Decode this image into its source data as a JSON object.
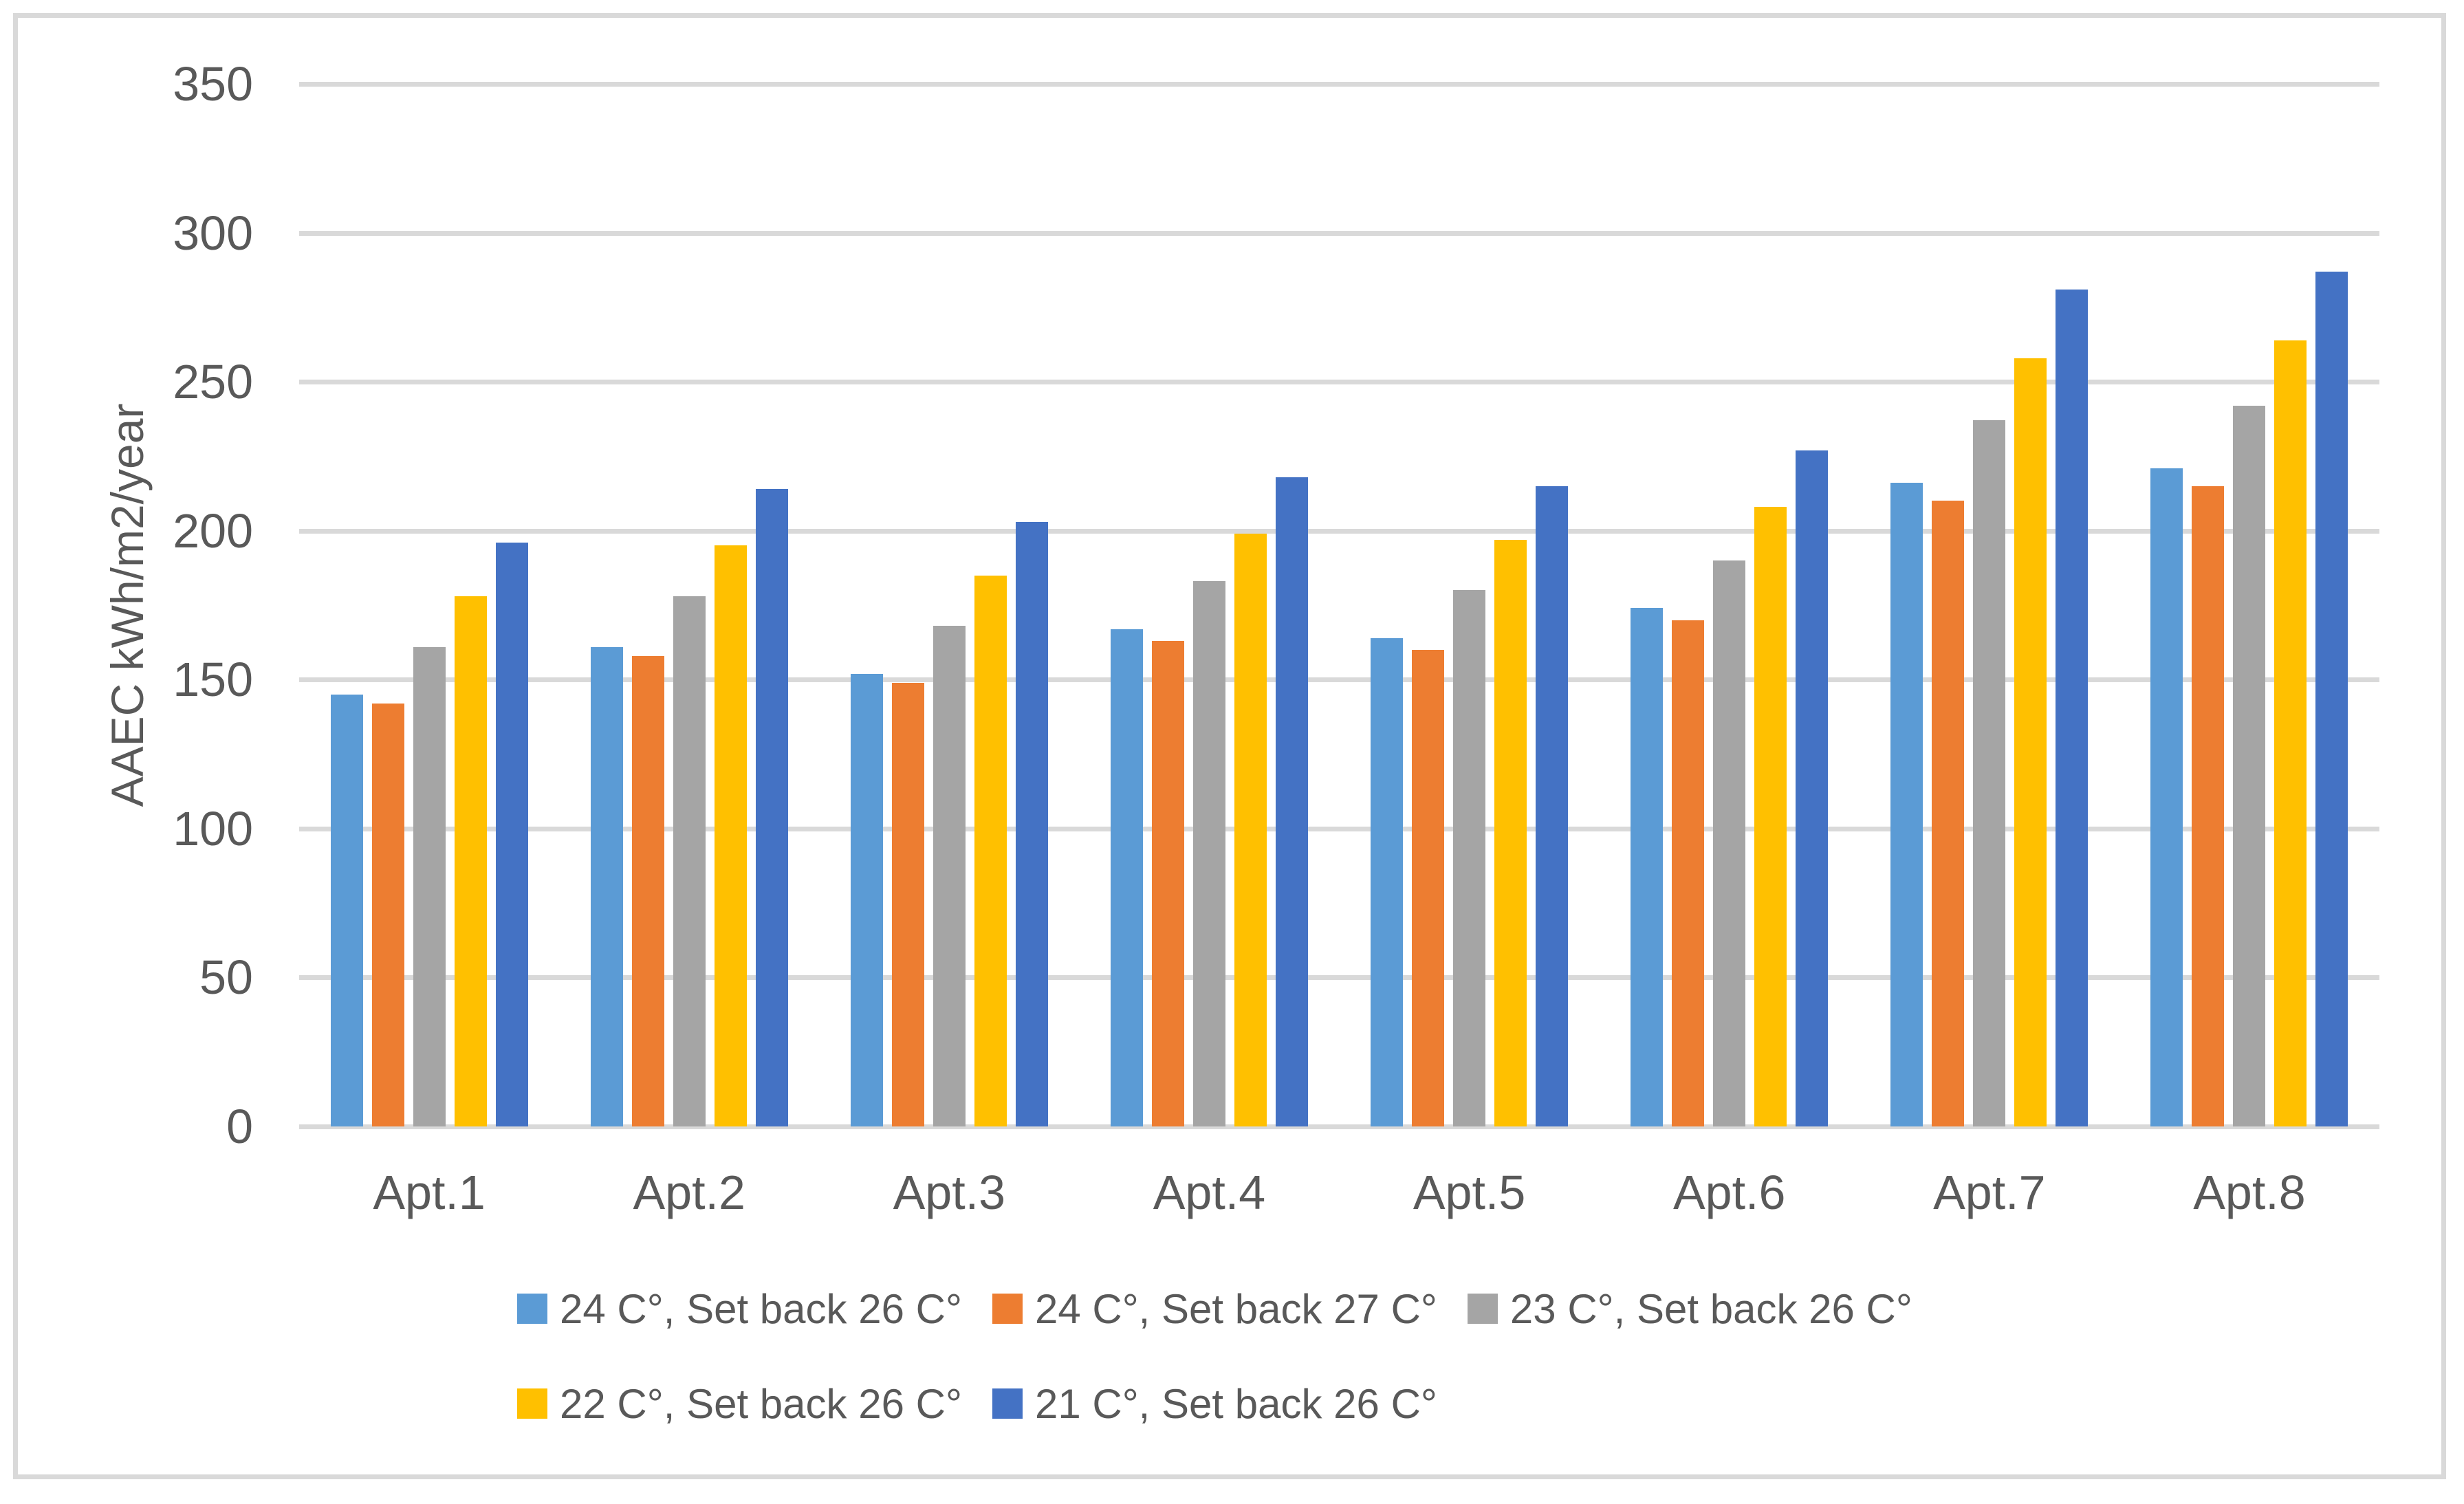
{
  "chart_data": {
    "type": "bar",
    "title": "",
    "xlabel": "",
    "ylabel": "AAEC kWh/m2/year",
    "ylim": [
      0,
      350
    ],
    "ytick_interval": 50,
    "grid": true,
    "legend_position": "bottom",
    "legend_rows": [
      [
        0,
        1,
        2
      ],
      [
        3,
        4
      ]
    ],
    "categories": [
      "Apt.1",
      "Apt.2",
      "Apt.3",
      "Apt.4",
      "Apt.5",
      "Apt.6",
      "Apt.7",
      "Apt.8"
    ],
    "series": [
      {
        "name": "24 C°, Set back 26 C°",
        "color": "#5B9BD5",
        "values": [
          145,
          161,
          152,
          167,
          164,
          174,
          216,
          221
        ]
      },
      {
        "name": "24 C°, Set back 27 C°",
        "color": "#ED7D31",
        "values": [
          142,
          158,
          149,
          163,
          160,
          170,
          210,
          215
        ]
      },
      {
        "name": "23 C°, Set back 26 C°",
        "color": "#A5A5A5",
        "values": [
          161,
          178,
          168,
          183,
          180,
          190,
          237,
          242
        ]
      },
      {
        "name": "22 C°, Set back 26 C°",
        "color": "#FFC000",
        "values": [
          178,
          195,
          185,
          199,
          197,
          208,
          258,
          264
        ]
      },
      {
        "name": "21 C°, Set back 26 C°",
        "color": "#4472C4",
        "values": [
          196,
          214,
          203,
          218,
          215,
          227,
          281,
          287
        ]
      }
    ]
  },
  "style": {
    "gridline_color": "#D9D9D9",
    "frame_border_color": "#D9D9D9",
    "text_color": "#595959",
    "background": "#FFFFFF"
  }
}
